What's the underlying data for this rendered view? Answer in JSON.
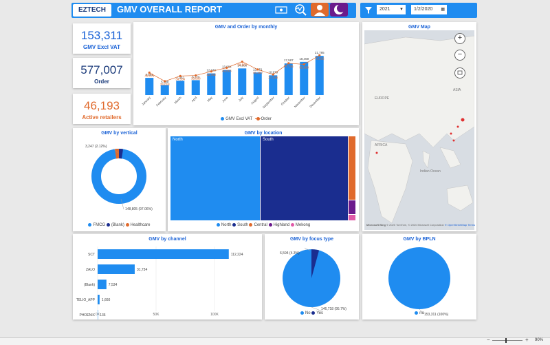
{
  "header": {
    "logo_text": "EZTECH",
    "title": "GMV OVERALL REPORT",
    "filter_year": "2021",
    "filter_date": "1/2/2020",
    "icons": [
      "money-icon",
      "analytics-icon",
      "user-icon",
      "moon-icon"
    ]
  },
  "kpis": [
    {
      "value": "153,311",
      "label": "GMV Excl VAT",
      "color": "#1a62d6"
    },
    {
      "value": "577,007",
      "label": "Order",
      "color": "#1a3a7a"
    },
    {
      "value": "46,193",
      "label": "Active retailers",
      "color": "#e06a2c"
    }
  ],
  "monthly": {
    "title": "GMV and Order by monthly",
    "legend_gmv": "GMV Excl VAT",
    "legend_order": "Order",
    "chart_data": {
      "type": "bar",
      "categories": [
        "January",
        "February",
        "March",
        "April",
        "May",
        "June",
        "July",
        "August",
        "September",
        "October",
        "November",
        "December"
      ],
      "series": [
        {
          "name": "GMV Excl VAT",
          "values": [
            9551,
            5588,
            7952,
            8270,
            12049,
            13964,
            14806,
            12551,
            10979,
            17587,
            18459,
            21785
          ]
        },
        {
          "name": "Order",
          "values": [
            40579,
            25018,
            34534,
            35568,
            42782,
            49553,
            60561,
            46360,
            37226,
            57736,
            55660,
            72022
          ]
        }
      ]
    }
  },
  "map": {
    "title": "GMV Map",
    "labels": [
      "EUROPE",
      "ASIA",
      "AFRICA",
      "Indian Ocean"
    ],
    "attribution": "Microsoft Bing",
    "copyright": "© 2020 TomTom, © 2020 Microsoft Corporation",
    "osm": "© OpenStreetMap",
    "terms": "Terms",
    "zoom_in": "+",
    "zoom_out": "−"
  },
  "vertical": {
    "title": "GMV by vertical",
    "label_small": "3,247 (2.12%)",
    "label_large": "148,805 (97.06%)",
    "legend": [
      {
        "name": "FMCG",
        "color": "#1f8cf0"
      },
      {
        "name": "(Blank)",
        "color": "#1a2d8f"
      },
      {
        "name": "Healthcare",
        "color": "#e06a2c"
      }
    ],
    "chart_data": {
      "type": "pie",
      "categories": [
        "FMCG",
        "(Blank)",
        "Healthcare"
      ],
      "values": [
        148805,
        1259,
        3247
      ]
    }
  },
  "location": {
    "title": "GMV by location",
    "label_north": "North",
    "label_south": "South",
    "legend": [
      {
        "name": "North",
        "color": "#1f8cf0"
      },
      {
        "name": "South",
        "color": "#1a2d8f"
      },
      {
        "name": "Central",
        "color": "#e06a2c"
      },
      {
        "name": "Highland",
        "color": "#6b1a8c"
      },
      {
        "name": "Mekong",
        "color": "#e05aa8"
      }
    ],
    "chart_data": {
      "type": "treemap",
      "categories": [
        "North",
        "South",
        "Central",
        "Highland",
        "Mekong"
      ],
      "values": [
        81000,
        66000,
        3500,
        1800,
        1000
      ]
    }
  },
  "channel": {
    "title": "GMV by channel",
    "ticks": [
      "0K",
      "50K",
      "100K"
    ],
    "chart_data": {
      "type": "bar",
      "categories": [
        "SCT",
        "ZALO",
        "(Blank)",
        "TELIO_APP",
        "PHOENIX"
      ],
      "values": [
        112224,
        31734,
        7534,
        1660,
        136
      ],
      "value_labels": [
        "112,224",
        "31,734",
        "7,534",
        "1,660",
        "136"
      ],
      "xlim": [
        0,
        120000
      ]
    }
  },
  "focus": {
    "title": "GMV by focus type",
    "label_yes": "6,594 (4.3%)",
    "label_no": "146,718 (95.7%)",
    "legend": [
      {
        "name": "No",
        "color": "#1f8cf0"
      },
      {
        "name": "Yes",
        "color": "#1a2d8f"
      }
    ],
    "chart_data": {
      "type": "pie",
      "categories": [
        "No",
        "Yes"
      ],
      "values": [
        146718,
        6594
      ]
    }
  },
  "bpln": {
    "title": "GMV by BPLN",
    "label": "153,311 (100%)",
    "legend": [
      {
        "name": "no",
        "color": "#1f8cf0"
      }
    ],
    "chart_data": {
      "type": "pie",
      "categories": [
        "no"
      ],
      "values": [
        153311
      ]
    }
  },
  "statusbar": {
    "zoom": "90%",
    "minus": "−",
    "plus": "+"
  }
}
